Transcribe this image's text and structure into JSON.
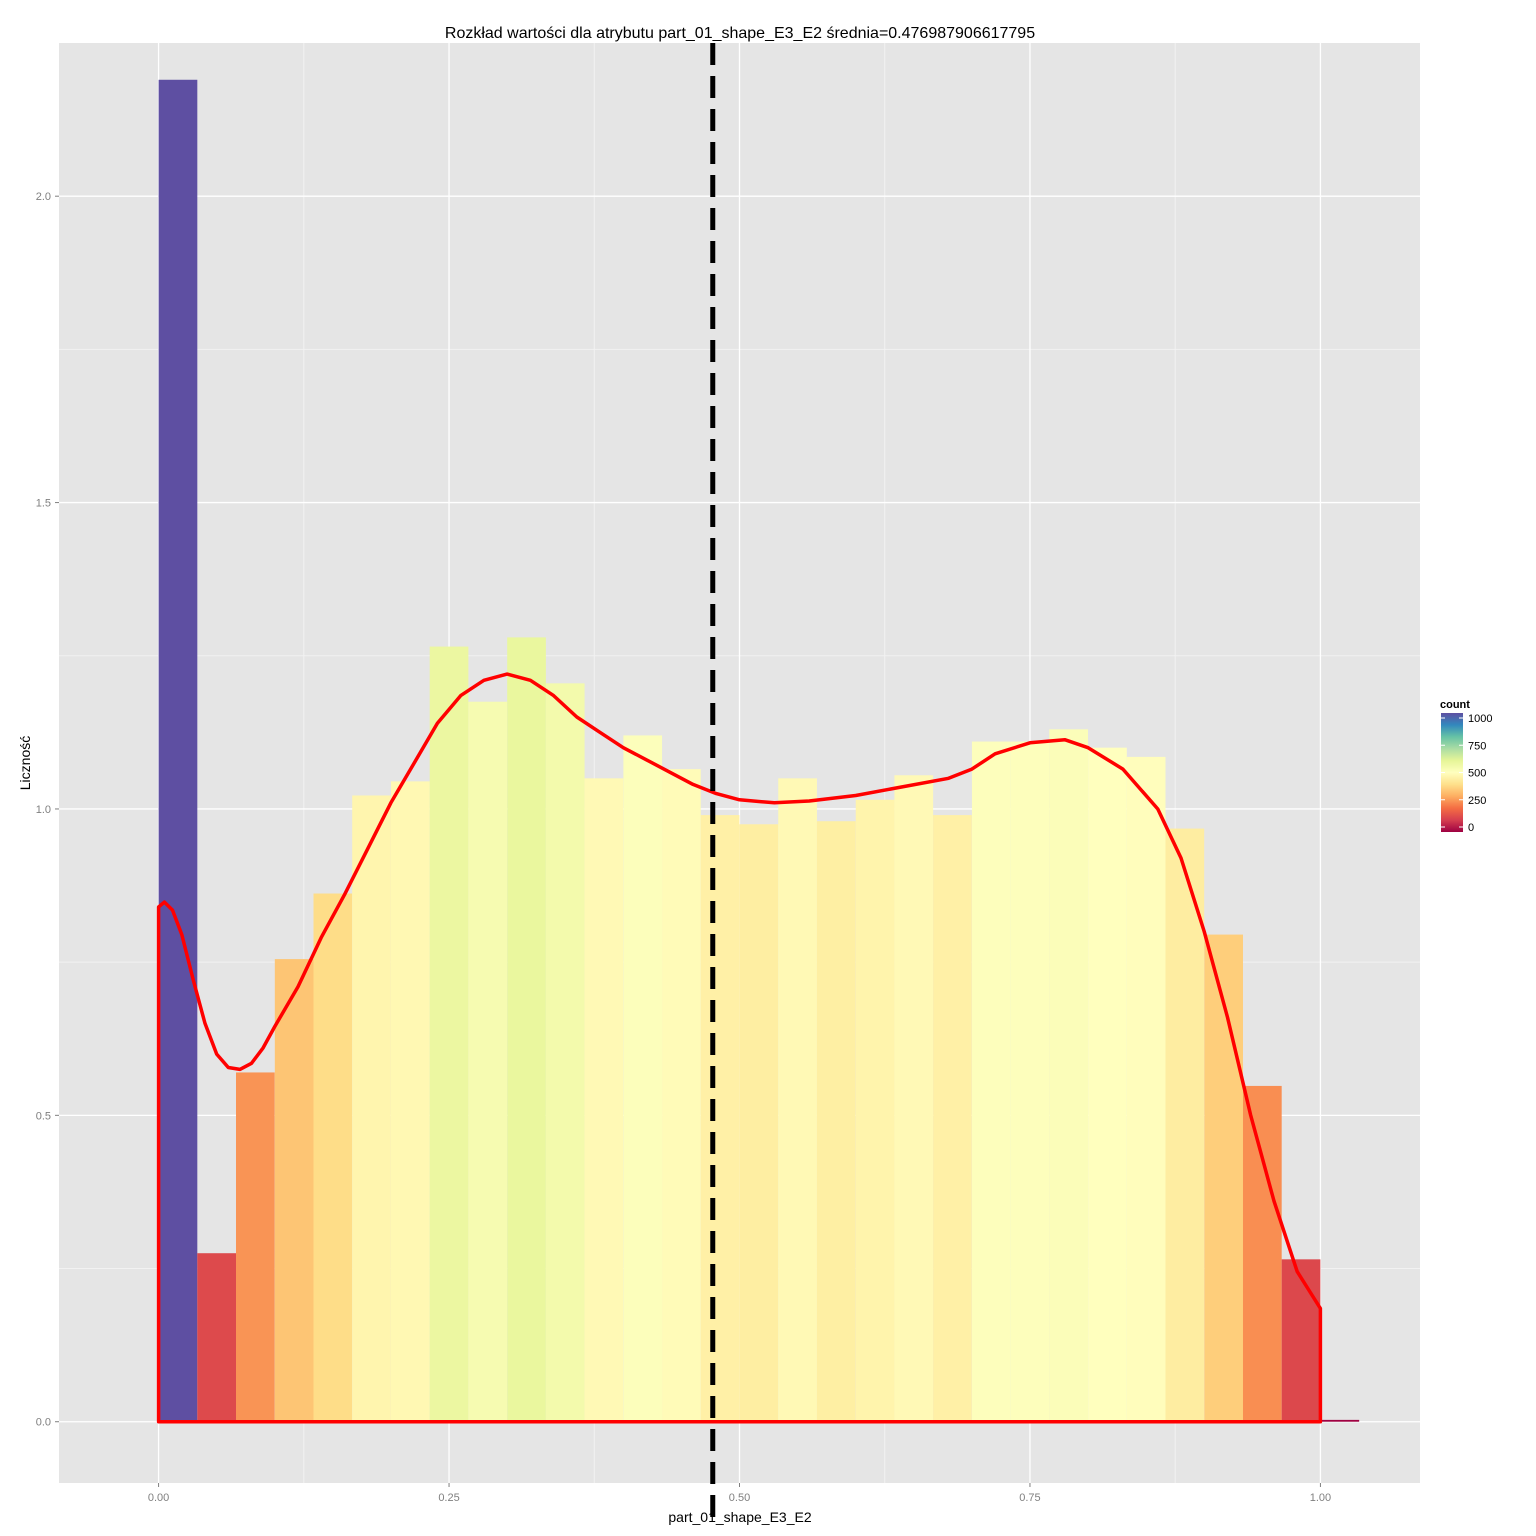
{
  "chart_data": {
    "type": "bar",
    "title": "Rozkład wartości dla atrybutu part_01_shape_E3_E2 średnia=0.476987906617795",
    "xlabel": "part_01_shape_E3_E2",
    "ylabel": "Liczność",
    "xlim": [
      -0.0857,
      1.0857
    ],
    "ylim": [
      -0.1,
      2.25
    ],
    "x_ticks": [
      0.0,
      0.25,
      0.5,
      0.75,
      1.0
    ],
    "x_tick_labels": [
      "0.00",
      "0.25",
      "0.50",
      "0.75",
      "1.00"
    ],
    "y_ticks": [
      0.0,
      0.5,
      1.0,
      1.5,
      2.0
    ],
    "y_tick_labels": [
      "0.0",
      "0.5",
      "1.0",
      "1.5",
      "2.0"
    ],
    "grid": true,
    "background": "#e5e5e5",
    "bin_width": 0.0333,
    "bins": [
      {
        "x": 0.0167,
        "density": 2.19,
        "count": 1000
      },
      {
        "x": 0.05,
        "density": 0.275,
        "count": 125
      },
      {
        "x": 0.0833,
        "density": 0.57,
        "count": 260
      },
      {
        "x": 0.1167,
        "density": 0.755,
        "count": 345
      },
      {
        "x": 0.15,
        "density": 0.862,
        "count": 393
      },
      {
        "x": 0.1833,
        "density": 1.022,
        "count": 467
      },
      {
        "x": 0.2167,
        "density": 1.045,
        "count": 477
      },
      {
        "x": 0.25,
        "density": 1.265,
        "count": 578
      },
      {
        "x": 0.2833,
        "density": 1.175,
        "count": 537
      },
      {
        "x": 0.3167,
        "density": 1.28,
        "count": 584
      },
      {
        "x": 0.35,
        "density": 1.205,
        "count": 550
      },
      {
        "x": 0.3833,
        "density": 1.05,
        "count": 480
      },
      {
        "x": 0.4167,
        "density": 1.12,
        "count": 511
      },
      {
        "x": 0.45,
        "density": 1.065,
        "count": 486
      },
      {
        "x": 0.4833,
        "density": 0.99,
        "count": 452
      },
      {
        "x": 0.5167,
        "density": 0.975,
        "count": 445
      },
      {
        "x": 0.55,
        "density": 1.05,
        "count": 480
      },
      {
        "x": 0.5833,
        "density": 0.98,
        "count": 447
      },
      {
        "x": 0.6167,
        "density": 1.015,
        "count": 463
      },
      {
        "x": 0.65,
        "density": 1.055,
        "count": 482
      },
      {
        "x": 0.6833,
        "density": 0.99,
        "count": 452
      },
      {
        "x": 0.7167,
        "density": 1.11,
        "count": 507
      },
      {
        "x": 0.75,
        "density": 1.11,
        "count": 507
      },
      {
        "x": 0.7833,
        "density": 1.13,
        "count": 516
      },
      {
        "x": 0.8167,
        "density": 1.1,
        "count": 502
      },
      {
        "x": 0.85,
        "density": 1.085,
        "count": 495
      },
      {
        "x": 0.8833,
        "density": 0.968,
        "count": 442
      },
      {
        "x": 0.9167,
        "density": 0.795,
        "count": 363
      },
      {
        "x": 0.95,
        "density": 0.548,
        "count": 250
      },
      {
        "x": 0.9833,
        "density": 0.265,
        "count": 121
      },
      {
        "x": 1.0167,
        "density": 0.003,
        "count": 1
      }
    ],
    "density_curve": {
      "color": "#ff0000",
      "points": [
        [
          0.0,
          0.84
        ],
        [
          0.005,
          0.848
        ],
        [
          0.012,
          0.835
        ],
        [
          0.02,
          0.795
        ],
        [
          0.03,
          0.72
        ],
        [
          0.04,
          0.65
        ],
        [
          0.05,
          0.6
        ],
        [
          0.06,
          0.578
        ],
        [
          0.07,
          0.575
        ],
        [
          0.08,
          0.585
        ],
        [
          0.09,
          0.61
        ],
        [
          0.1,
          0.645
        ],
        [
          0.12,
          0.71
        ],
        [
          0.14,
          0.79
        ],
        [
          0.16,
          0.86
        ],
        [
          0.18,
          0.935
        ],
        [
          0.2,
          1.01
        ],
        [
          0.22,
          1.075
        ],
        [
          0.24,
          1.14
        ],
        [
          0.26,
          1.185
        ],
        [
          0.28,
          1.21
        ],
        [
          0.3,
          1.22
        ],
        [
          0.32,
          1.21
        ],
        [
          0.34,
          1.185
        ],
        [
          0.36,
          1.15
        ],
        [
          0.38,
          1.125
        ],
        [
          0.4,
          1.1
        ],
        [
          0.42,
          1.08
        ],
        [
          0.44,
          1.06
        ],
        [
          0.46,
          1.04
        ],
        [
          0.48,
          1.025
        ],
        [
          0.5,
          1.015
        ],
        [
          0.53,
          1.01
        ],
        [
          0.56,
          1.013
        ],
        [
          0.6,
          1.022
        ],
        [
          0.64,
          1.036
        ],
        [
          0.68,
          1.05
        ],
        [
          0.7,
          1.065
        ],
        [
          0.72,
          1.09
        ],
        [
          0.75,
          1.108
        ],
        [
          0.78,
          1.113
        ],
        [
          0.8,
          1.1
        ],
        [
          0.83,
          1.065
        ],
        [
          0.86,
          1.0
        ],
        [
          0.88,
          0.92
        ],
        [
          0.9,
          0.8
        ],
        [
          0.92,
          0.66
        ],
        [
          0.94,
          0.5
        ],
        [
          0.96,
          0.36
        ],
        [
          0.98,
          0.245
        ],
        [
          0.99,
          0.215
        ],
        [
          1.0,
          0.185
        ],
        [
          1.0,
          0.0
        ],
        [
          0.0,
          0.0
        ]
      ]
    },
    "mean_line": {
      "x": 0.476987906617795,
      "style": "dashed",
      "color": "#000000"
    },
    "legend": {
      "title": "count",
      "placement": "right",
      "range": [
        0,
        1000
      ],
      "ticks": [
        0,
        250,
        500,
        750,
        1000
      ],
      "tick_labels": [
        "0",
        "250",
        "500",
        "750",
        "1000"
      ]
    },
    "colorscale": "Spectral"
  }
}
